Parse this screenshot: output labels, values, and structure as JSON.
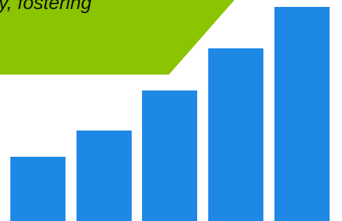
{
  "banner": {
    "text": "y, fostering",
    "color": "#8bc400"
  },
  "bars": {
    "color": "#1e88e5",
    "levels": [
      0.29,
      0.41,
      0.59,
      0.78,
      0.97
    ]
  }
}
